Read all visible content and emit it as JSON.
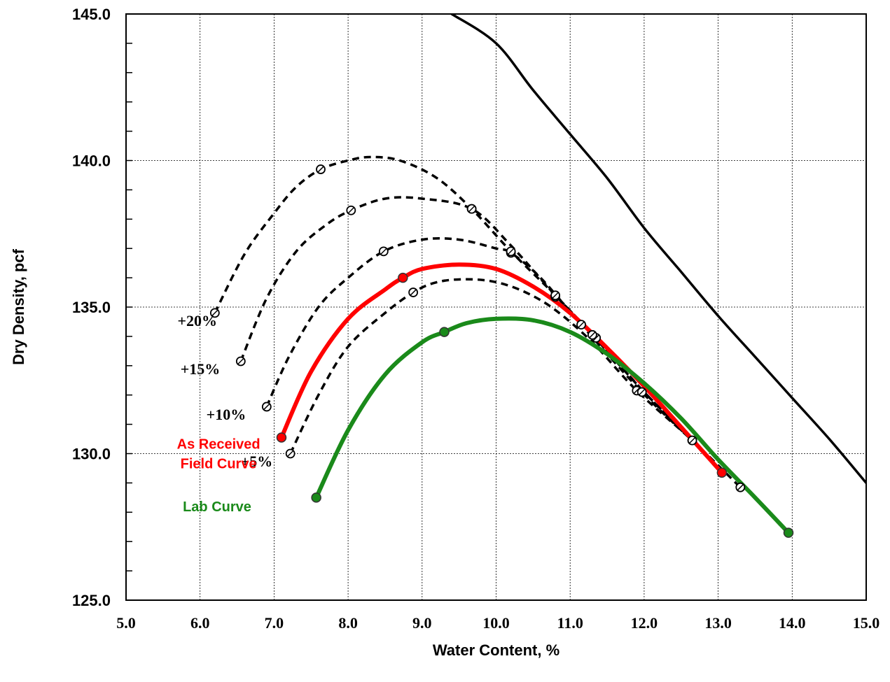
{
  "chart_data": {
    "type": "line",
    "xlabel": "Water Content, %",
    "ylabel": "Dry Density, pcf",
    "xlim": [
      5.0,
      15.0
    ],
    "ylim": [
      125.0,
      145.0
    ],
    "x_ticks": [
      "5.0",
      "6.0",
      "7.0",
      "8.0",
      "9.0",
      "10.0",
      "11.0",
      "12.0",
      "13.0",
      "14.0",
      "15.0"
    ],
    "y_ticks": [
      "125.0",
      "130.0",
      "135.0",
      "140.0",
      "145.0"
    ],
    "grid": true,
    "colors": {
      "lab": "#1a8a1a",
      "field": "#ff0000",
      "dashed": "#000000",
      "zav": "#000000"
    },
    "series": [
      {
        "name": "Lab Curve",
        "color": "#1a8a1a",
        "style": "solid",
        "points": [
          [
            7.57,
            128.5
          ],
          [
            9.3,
            134.15
          ],
          [
            13.95,
            127.3
          ]
        ],
        "curve": [
          [
            7.57,
            128.5
          ],
          [
            8.0,
            130.8
          ],
          [
            8.5,
            132.7
          ],
          [
            9.0,
            133.8
          ],
          [
            9.3,
            134.15
          ],
          [
            9.6,
            134.45
          ],
          [
            10.0,
            134.6
          ],
          [
            10.5,
            134.55
          ],
          [
            11.0,
            134.15
          ],
          [
            11.5,
            133.4
          ],
          [
            12.0,
            132.4
          ],
          [
            12.5,
            131.2
          ],
          [
            13.0,
            129.8
          ],
          [
            13.5,
            128.5
          ],
          [
            13.95,
            127.3
          ]
        ]
      },
      {
        "name": "As Received Field Curve",
        "color": "#ff0000",
        "style": "solid",
        "points": [
          [
            7.1,
            130.55
          ],
          [
            8.74,
            136.0
          ],
          [
            13.05,
            129.35
          ]
        ],
        "curve": [
          [
            7.1,
            130.55
          ],
          [
            7.5,
            132.8
          ],
          [
            8.0,
            134.6
          ],
          [
            8.5,
            135.6
          ],
          [
            8.74,
            136.0
          ],
          [
            9.0,
            136.3
          ],
          [
            9.5,
            136.45
          ],
          [
            10.0,
            136.3
          ],
          [
            10.5,
            135.7
          ],
          [
            11.0,
            134.8
          ],
          [
            11.5,
            133.6
          ],
          [
            12.0,
            132.3
          ],
          [
            12.5,
            130.9
          ],
          [
            13.05,
            129.35
          ]
        ]
      },
      {
        "name": "+5%",
        "color": "#000000",
        "style": "dashed",
        "points": [
          [
            7.22,
            130.0
          ],
          [
            8.88,
            135.5
          ],
          [
            10.8,
            135.35
          ],
          [
            11.9,
            132.15
          ],
          [
            12.65,
            130.45
          ],
          [
            13.3,
            128.85
          ]
        ],
        "curve": [
          [
            7.22,
            130.0
          ],
          [
            7.6,
            132.0
          ],
          [
            8.0,
            133.65
          ],
          [
            8.5,
            134.8
          ],
          [
            8.88,
            135.5
          ],
          [
            9.2,
            135.85
          ],
          [
            9.6,
            135.95
          ],
          [
            10.0,
            135.85
          ],
          [
            10.4,
            135.5
          ],
          [
            10.8,
            134.9
          ],
          [
            11.3,
            133.8
          ],
          [
            11.9,
            132.15
          ],
          [
            12.65,
            130.45
          ],
          [
            13.3,
            128.85
          ]
        ]
      },
      {
        "name": "+10%",
        "color": "#000000",
        "style": "dashed",
        "points": [
          [
            6.9,
            131.6
          ],
          [
            8.48,
            136.9
          ],
          [
            10.2,
            136.85
          ],
          [
            11.15,
            134.4
          ],
          [
            11.97,
            132.1
          ],
          [
            12.65,
            130.45
          ]
        ],
        "curve": [
          [
            6.9,
            131.6
          ],
          [
            7.2,
            133.3
          ],
          [
            7.6,
            135.0
          ],
          [
            8.0,
            136.0
          ],
          [
            8.48,
            136.9
          ],
          [
            9.0,
            137.3
          ],
          [
            9.5,
            137.3
          ],
          [
            10.0,
            137.0
          ],
          [
            10.2,
            136.85
          ],
          [
            10.6,
            136.0
          ],
          [
            11.15,
            134.4
          ],
          [
            11.97,
            132.1
          ],
          [
            12.65,
            130.45
          ]
        ]
      },
      {
        "name": "+15%",
        "color": "#000000",
        "style": "dashed",
        "points": [
          [
            6.55,
            133.15
          ],
          [
            8.04,
            138.3
          ],
          [
            9.67,
            138.35
          ],
          [
            10.8,
            135.4
          ],
          [
            11.35,
            133.95
          ]
        ],
        "curve": [
          [
            6.55,
            133.15
          ],
          [
            6.9,
            135.3
          ],
          [
            7.3,
            136.9
          ],
          [
            7.7,
            137.8
          ],
          [
            8.04,
            138.3
          ],
          [
            8.5,
            138.7
          ],
          [
            9.0,
            138.7
          ],
          [
            9.67,
            138.35
          ],
          [
            10.2,
            137.1
          ],
          [
            10.8,
            135.4
          ],
          [
            11.35,
            133.95
          ],
          [
            12.0,
            132.1
          ],
          [
            12.65,
            130.45
          ]
        ]
      },
      {
        "name": "+20%",
        "color": "#000000",
        "style": "dashed",
        "points": [
          [
            6.2,
            134.8
          ],
          [
            7.63,
            139.7
          ],
          [
            9.67,
            138.35
          ],
          [
            10.2,
            136.9
          ],
          [
            10.8,
            135.4
          ],
          [
            11.3,
            134.05
          ]
        ],
        "curve": [
          [
            6.2,
            134.8
          ],
          [
            6.6,
            136.8
          ],
          [
            7.0,
            138.2
          ],
          [
            7.3,
            139.1
          ],
          [
            7.63,
            139.7
          ],
          [
            8.0,
            140.0
          ],
          [
            8.3,
            140.12
          ],
          [
            8.7,
            140.0
          ],
          [
            9.2,
            139.4
          ],
          [
            9.67,
            138.35
          ],
          [
            10.2,
            136.9
          ],
          [
            10.8,
            135.4
          ],
          [
            11.3,
            134.05
          ],
          [
            12.0,
            132.1
          ],
          [
            12.65,
            130.45
          ]
        ]
      },
      {
        "name": "",
        "color": "#000000",
        "style": "solid-thick",
        "points": [],
        "curve": [
          [
            9.4,
            145.0
          ],
          [
            10.0,
            144.0
          ],
          [
            10.5,
            142.4
          ],
          [
            11.0,
            140.9
          ],
          [
            11.5,
            139.4
          ],
          [
            12.0,
            137.7
          ],
          [
            12.5,
            136.2
          ],
          [
            13.0,
            134.7
          ],
          [
            13.5,
            133.3
          ],
          [
            14.0,
            131.9
          ],
          [
            14.5,
            130.5
          ],
          [
            15.0,
            129.0
          ]
        ]
      }
    ],
    "annotations": [
      {
        "text": "+20%",
        "x": 6.23,
        "y": 134.55,
        "anchor": "end"
      },
      {
        "text": "+15%",
        "x": 6.27,
        "y": 132.9,
        "anchor": "end"
      },
      {
        "text": "+10%",
        "x": 6.62,
        "y": 131.35,
        "anchor": "end"
      },
      {
        "text": "+5%",
        "x": 6.98,
        "y": 129.75,
        "anchor": "end"
      }
    ],
    "curve_labels": [
      {
        "lines": [
          "As Received",
          "Field Curve"
        ],
        "color": "#ff0000",
        "x": 6.25,
        "y": 130.0,
        "anchor": "middle"
      },
      {
        "lines": [
          "Lab Curve"
        ],
        "color": "#1a8a1a",
        "x": 6.23,
        "y": 128.2,
        "anchor": "middle"
      }
    ]
  }
}
